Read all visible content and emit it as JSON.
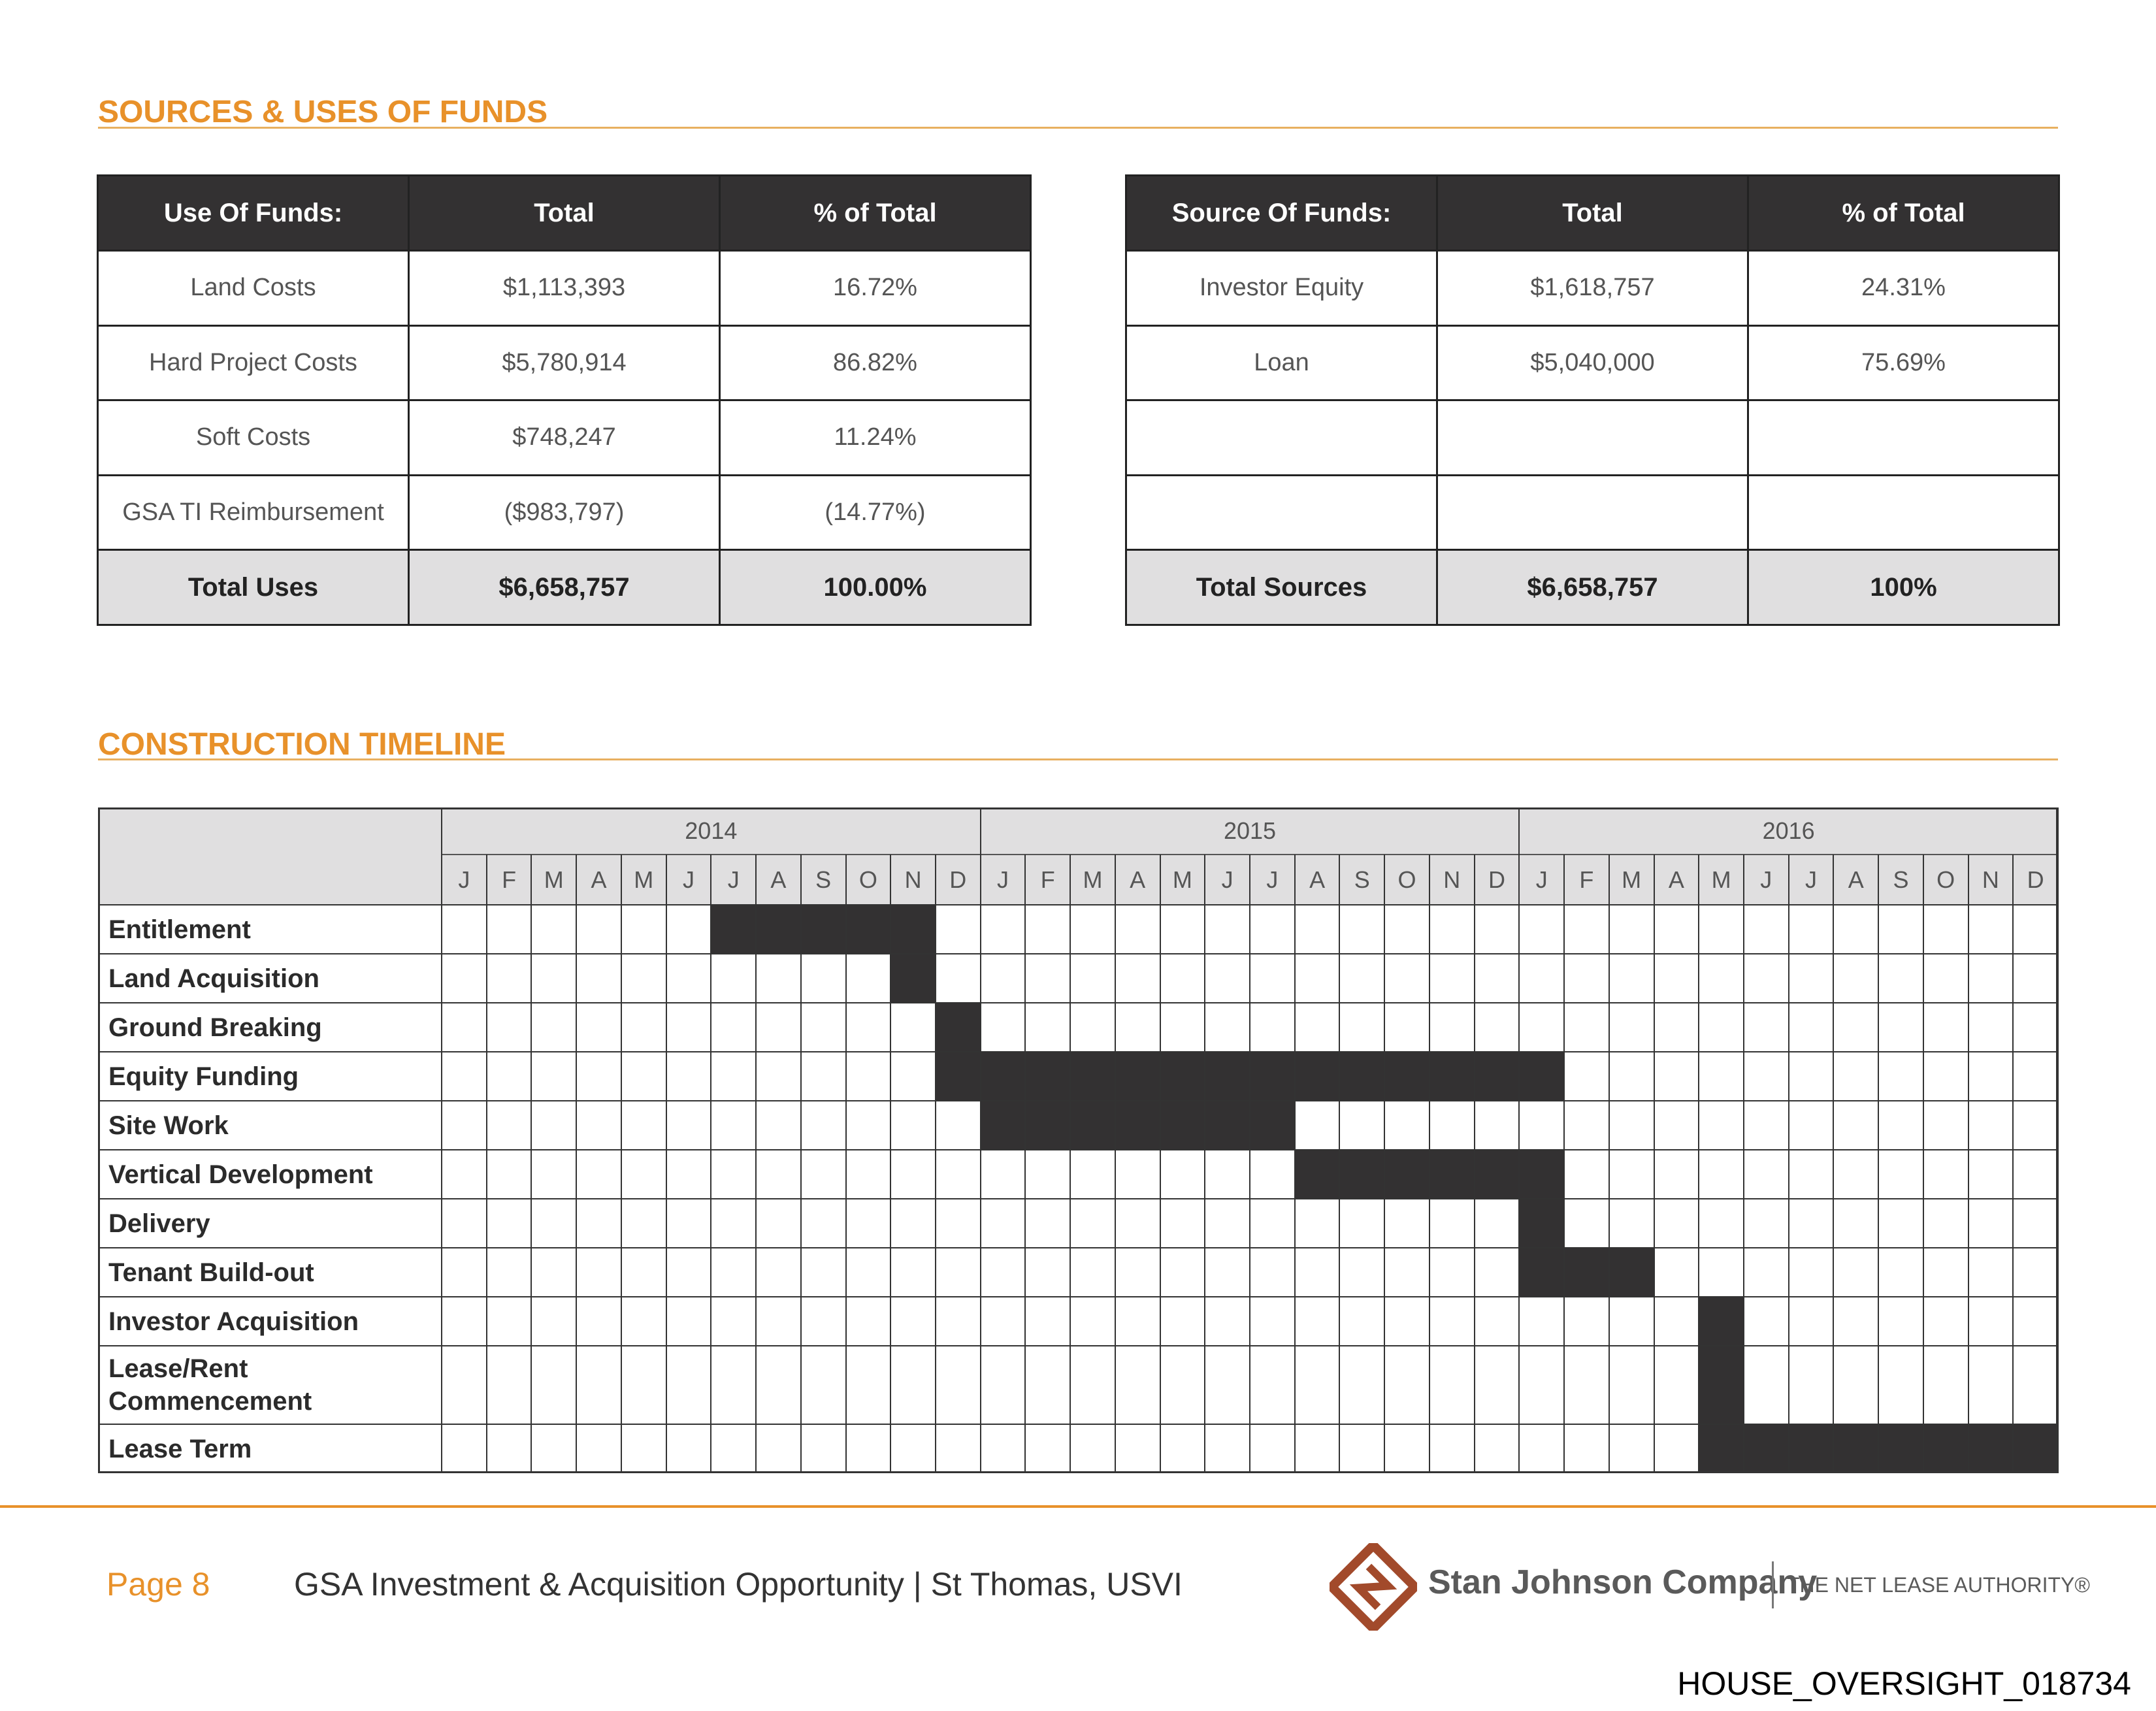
{
  "sources_uses": {
    "title": "SOURCES & USES OF FUNDS",
    "uses": {
      "header": [
        "Use Of Funds:",
        "Total",
        "% of Total"
      ],
      "rows": [
        [
          "Land Costs",
          "$1,113,393",
          "16.72%"
        ],
        [
          "Hard Project Costs",
          "$5,780,914",
          "86.82%"
        ],
        [
          "Soft Costs",
          "$748,247",
          "11.24%"
        ],
        [
          "GSA TI Reimbursement",
          "($983,797)",
          "(14.77%)"
        ]
      ],
      "total": [
        "Total Uses",
        "$6,658,757",
        "100.00%"
      ]
    },
    "sources": {
      "header": [
        "Source Of Funds:",
        "Total",
        "% of Total"
      ],
      "rows": [
        [
          "Investor Equity",
          "$1,618,757",
          "24.31%"
        ],
        [
          "Loan",
          "$5,040,000",
          "75.69%"
        ]
      ],
      "total": [
        "Total Sources",
        "$6,658,757",
        "100%"
      ]
    }
  },
  "timeline": {
    "title": "CONSTRUCTION TIMELINE",
    "years": [
      "2014",
      "2015",
      "2016"
    ],
    "months": [
      "J",
      "F",
      "M",
      "A",
      "M",
      "J",
      "J",
      "A",
      "S",
      "O",
      "N",
      "D",
      "J",
      "F",
      "M",
      "A",
      "M",
      "J",
      "J",
      "A",
      "S",
      "O",
      "N",
      "D",
      "J",
      "F",
      "M",
      "A",
      "M",
      "J",
      "J",
      "A",
      "S",
      "O",
      "N",
      "D"
    ],
    "tasks": [
      {
        "label": "Entitlement",
        "start": 6,
        "end": 10
      },
      {
        "label": "Land Acquisition",
        "start": 10,
        "end": 10
      },
      {
        "label": "Ground Breaking",
        "start": 11,
        "end": 11
      },
      {
        "label": "Equity Funding",
        "start": 11,
        "end": 24
      },
      {
        "label": "Site Work",
        "start": 12,
        "end": 18
      },
      {
        "label": "Vertical Development",
        "start": 19,
        "end": 24
      },
      {
        "label": "Delivery",
        "start": 24,
        "end": 24
      },
      {
        "label": "Tenant Build-out",
        "start": 24,
        "end": 26
      },
      {
        "label": "Investor Acquisition",
        "start": 28,
        "end": 28
      },
      {
        "label": "Lease/Rent Commencement",
        "start": 28,
        "end": 28
      },
      {
        "label": "Lease Term",
        "start": 28,
        "end": 35
      }
    ]
  },
  "footer": {
    "page": "Page 8",
    "subject": "GSA Investment & Acquisition Opportunity | St Thomas, USVI",
    "company": "Stan Johnson Company",
    "tagline": "THE NET LEASE AUTHORITY®"
  },
  "document_id": "HOUSE_OVERSIGHT_018734"
}
